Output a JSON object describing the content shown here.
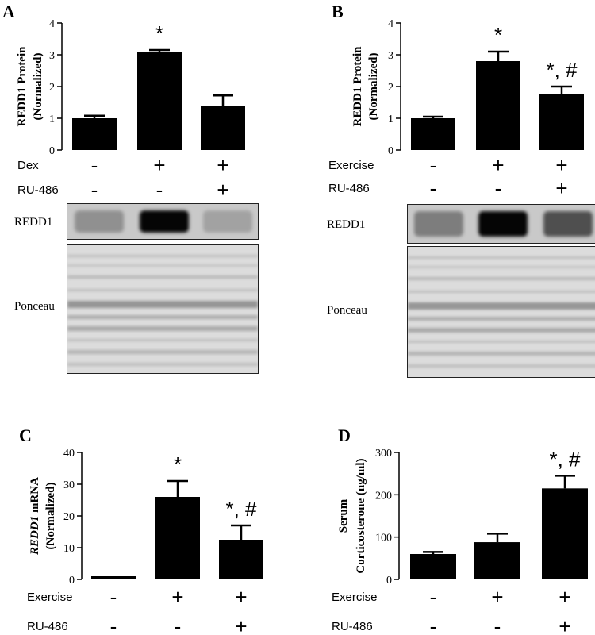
{
  "chart_data": [
    {
      "type": "bar",
      "panel_label": "A",
      "ylabel": "REDD1 Protein",
      "ylabel2": "(Normalized)",
      "ylim": [
        0,
        4
      ],
      "yticks": [
        "0",
        "1",
        "2",
        "3",
        "4"
      ],
      "tick_values": [
        0,
        1,
        2,
        3,
        4
      ],
      "values": [
        1.0,
        3.1,
        1.4
      ],
      "errors": [
        0.08,
        0.05,
        0.32
      ],
      "annotations": [
        "",
        "*",
        ""
      ],
      "conditions": [
        {
          "label": "Dex",
          "signs": [
            "-",
            "+",
            "+"
          ]
        },
        {
          "label": "RU-486",
          "signs": [
            "-",
            "-",
            "+"
          ]
        }
      ],
      "blot_labels": [
        "REDD1",
        "Ponceau"
      ],
      "redd1_band_intensity": [
        0.25,
        1.0,
        0.15
      ]
    },
    {
      "type": "bar",
      "panel_label": "B",
      "ylabel": "REDD1 Protein",
      "ylabel2": "(Normalized)",
      "ylim": [
        0,
        4
      ],
      "yticks": [
        "0",
        "1",
        "2",
        "3",
        "4"
      ],
      "tick_values": [
        0,
        1,
        2,
        3,
        4
      ],
      "values": [
        1.0,
        2.8,
        1.75
      ],
      "errors": [
        0.05,
        0.3,
        0.25
      ],
      "annotations": [
        "",
        "*",
        "*, #"
      ],
      "conditions": [
        {
          "label": "Exercise",
          "signs": [
            "-",
            "+",
            "+"
          ]
        },
        {
          "label": "RU-486",
          "signs": [
            "-",
            "-",
            "+"
          ]
        }
      ],
      "blot_labels": [
        "REDD1",
        "Ponceau"
      ],
      "redd1_band_intensity": [
        0.35,
        1.0,
        0.6
      ]
    },
    {
      "type": "bar",
      "panel_label": "C",
      "ylabel": "REDD1 mRNA",
      "ylabel_italic": "REDD1",
      "ylabel_rest": " mRNA",
      "ylabel2": "(Normalized)",
      "ylim": [
        0,
        40
      ],
      "yticks": [
        "0",
        "10",
        "20",
        "30",
        "40"
      ],
      "tick_values": [
        0,
        10,
        20,
        30,
        40
      ],
      "values": [
        1.0,
        26,
        12.5
      ],
      "errors": [
        0,
        5,
        4.5
      ],
      "annotations": [
        "",
        "*",
        "*, #"
      ],
      "conditions": [
        {
          "label": "Exercise",
          "signs": [
            "-",
            "+",
            "+"
          ]
        },
        {
          "label": "RU-486",
          "signs": [
            "-",
            "-",
            "+"
          ]
        }
      ]
    },
    {
      "type": "bar",
      "panel_label": "D",
      "ylabel": "Serum",
      "ylabel2": "Corticosterone (ng/ml)",
      "ylim": [
        0,
        300
      ],
      "yticks": [
        "0",
        "100",
        "200",
        "300"
      ],
      "tick_values": [
        0,
        100,
        200,
        300
      ],
      "values": [
        60,
        88,
        215
      ],
      "errors": [
        5,
        20,
        30
      ],
      "annotations": [
        "",
        "",
        "*, #"
      ],
      "conditions": [
        {
          "label": "Exercise",
          "signs": [
            "-",
            "+",
            "+"
          ]
        },
        {
          "label": "RU-486",
          "signs": [
            "-",
            "-",
            "+"
          ]
        }
      ]
    }
  ]
}
